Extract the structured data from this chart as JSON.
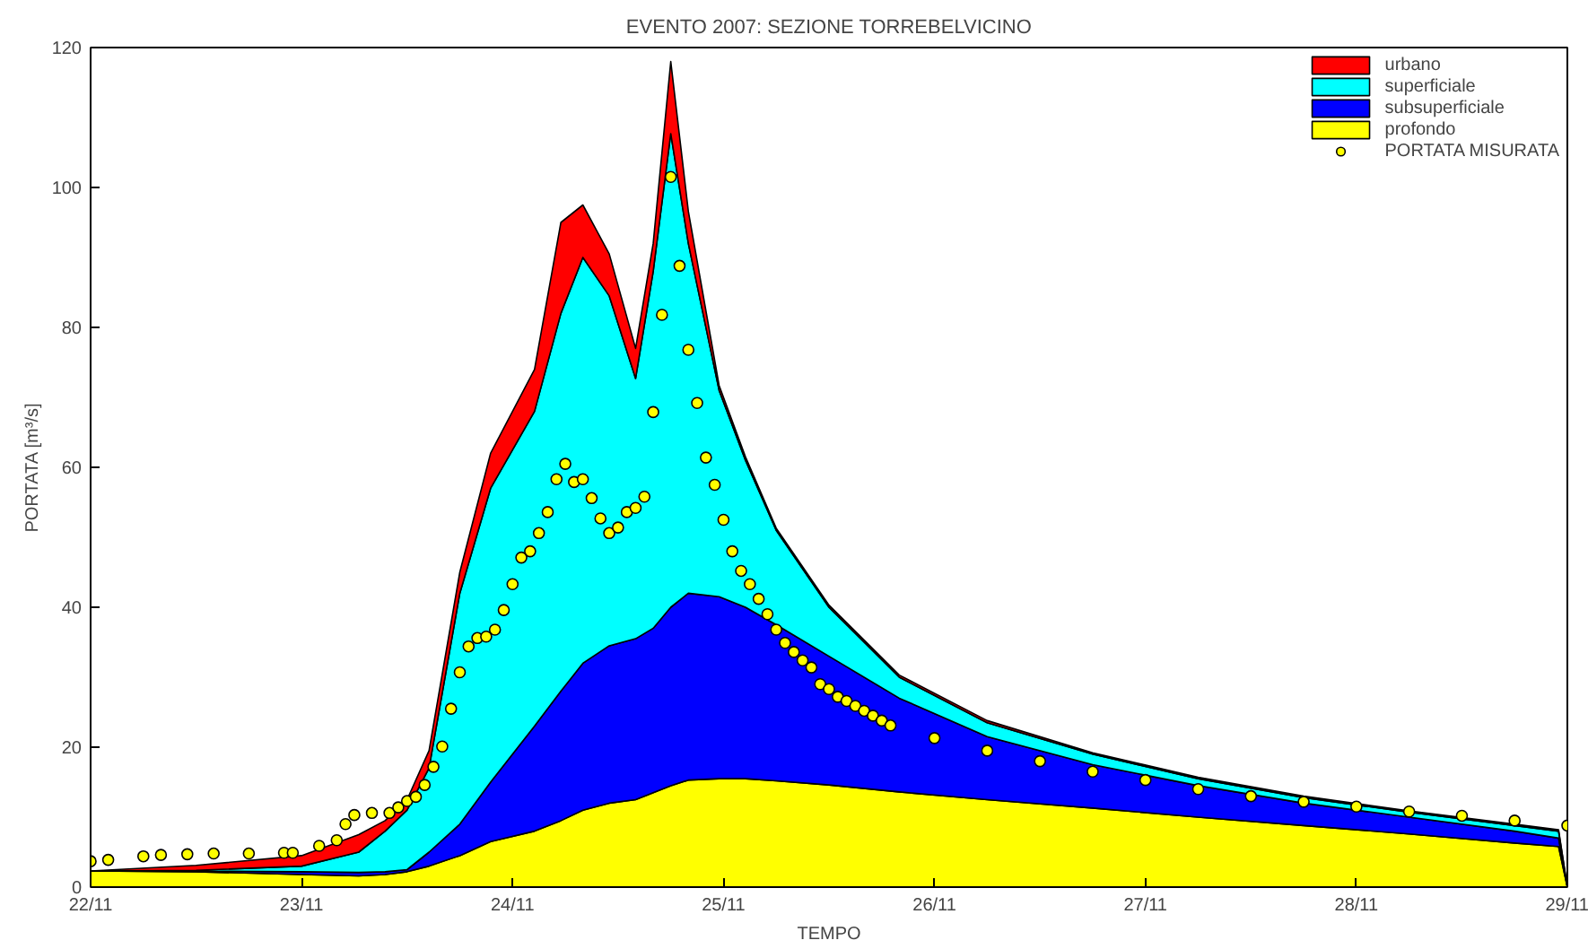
{
  "chart_data": {
    "type": "area",
    "stacked": true,
    "title": "EVENTO 2007: SEZIONE TORREBELVICINO",
    "xlabel": "TEMPO",
    "ylabel": "PORTATA [m³/s]",
    "x": [
      "2007-11-22T00:00",
      "2007-11-22T12:00",
      "2007-11-23T00:00",
      "2007-11-23T06:30",
      "2007-11-23T09:30",
      "2007-11-23T12:00",
      "2007-11-23T14:30",
      "2007-11-23T18:00",
      "2007-11-23T21:30",
      "2007-11-24T02:30",
      "2007-11-24T05:30",
      "2007-11-24T08:00",
      "2007-11-24T11:00",
      "2007-11-24T14:00",
      "2007-11-24T16:00",
      "2007-11-24T18:00",
      "2007-11-24T20:00",
      "2007-11-24T23:30",
      "2007-11-25T02:30",
      "2007-11-25T06:00",
      "2007-11-25T12:00",
      "2007-11-25T20:00",
      "2007-11-26T06:00",
      "2007-11-26T18:00",
      "2007-11-27T06:00",
      "2007-11-27T18:00",
      "2007-11-28T06:00",
      "2007-11-28T18:00",
      "2007-11-28T23:00",
      "2007-11-29T00:00"
    ],
    "xlim": [
      "2007-11-22",
      "2007-11-29"
    ],
    "ylim": [
      0,
      120
    ],
    "xticks": [
      {
        "value": "2007-11-22",
        "label": "22/11"
      },
      {
        "value": "2007-11-23",
        "label": "23/11"
      },
      {
        "value": "2007-11-24",
        "label": "24/11"
      },
      {
        "value": "2007-11-25",
        "label": "25/11"
      },
      {
        "value": "2007-11-26",
        "label": "26/11"
      },
      {
        "value": "2007-11-27",
        "label": "27/11"
      },
      {
        "value": "2007-11-28",
        "label": "28/11"
      },
      {
        "value": "2007-11-29",
        "label": "29/11"
      }
    ],
    "yticks": [
      0,
      20,
      40,
      60,
      80,
      100,
      120
    ],
    "grid": false,
    "legend": "top right",
    "series": [
      {
        "name": "profondo",
        "color": "#ffff00",
        "values": [
          2.3,
          2.2,
          1.8,
          1.6,
          1.8,
          2.2,
          3,
          4.5,
          6.5,
          8,
          9.5,
          11,
          12,
          12.5,
          13.5,
          14.5,
          15.3,
          15.5,
          15.5,
          15.2,
          14.6,
          13.6,
          12.5,
          11.3,
          10,
          8.8,
          7.6,
          6.3,
          5.8,
          0
        ]
      },
      {
        "name": "subsuperficiale",
        "color": "#0000ff",
        "values": [
          0,
          0.1,
          0.4,
          0.5,
          0.4,
          0.3,
          2,
          4.5,
          8.5,
          15,
          18.5,
          21,
          22.5,
          23,
          23.5,
          25.5,
          26.7,
          26,
          24.5,
          22.3,
          18.4,
          13.4,
          9,
          6.2,
          4.5,
          3.2,
          2.4,
          1.7,
          1.2,
          0
        ]
      },
      {
        "name": "superficiale",
        "color": "#00ffff",
        "values": [
          0,
          0.1,
          0.8,
          2.9,
          5.8,
          8.5,
          12,
          33,
          42,
          45,
          54,
          58,
          50,
          37.2,
          51,
          67.7,
          50,
          29.5,
          21,
          13.5,
          7,
          3,
          2,
          1.5,
          1,
          0.8,
          0.7,
          0.8,
          1,
          0
        ]
      },
      {
        "name": "urbano",
        "color": "#ff0000",
        "values": [
          0,
          0.7,
          1.5,
          2.5,
          1.5,
          1.5,
          2.5,
          3,
          5,
          6,
          13,
          7.5,
          6,
          4.3,
          4,
          10.3,
          4.6,
          0.7,
          0.5,
          0.3,
          0.3,
          0.3,
          0.3,
          0.2,
          0.2,
          0.2,
          0.2,
          0.2,
          0.2,
          0
        ]
      },
      {
        "name": "PORTATA MISURATA",
        "type": "scatter",
        "marker": "circle",
        "color": "#ffff00",
        "x": [
          "2007-11-22T00:00",
          "2007-11-22T02:00",
          "2007-11-22T06:00",
          "2007-11-22T08:00",
          "2007-11-22T11:00",
          "2007-11-22T14:00",
          "2007-11-22T18:00",
          "2007-11-22T22:00",
          "2007-11-22T23:00",
          "2007-11-23T02:00",
          "2007-11-23T04:00",
          "2007-11-23T05:00",
          "2007-11-23T06:00",
          "2007-11-23T08:00",
          "2007-11-23T10:00",
          "2007-11-23T11:00",
          "2007-11-23T12:00",
          "2007-11-23T13:00",
          "2007-11-23T14:00",
          "2007-11-23T15:00",
          "2007-11-23T16:00",
          "2007-11-23T17:00",
          "2007-11-23T18:00",
          "2007-11-23T19:00",
          "2007-11-23T20:00",
          "2007-11-23T21:00",
          "2007-11-23T22:00",
          "2007-11-23T23:00",
          "2007-11-24T00:00",
          "2007-11-24T01:00",
          "2007-11-24T02:00",
          "2007-11-24T03:00",
          "2007-11-24T04:00",
          "2007-11-24T05:00",
          "2007-11-24T06:00",
          "2007-11-24T07:00",
          "2007-11-24T08:00",
          "2007-11-24T09:00",
          "2007-11-24T10:00",
          "2007-11-24T11:00",
          "2007-11-24T12:00",
          "2007-11-24T13:00",
          "2007-11-24T14:00",
          "2007-11-24T15:00",
          "2007-11-24T16:00",
          "2007-11-24T17:00",
          "2007-11-24T18:00",
          "2007-11-24T19:00",
          "2007-11-24T20:00",
          "2007-11-24T21:00",
          "2007-11-24T22:00",
          "2007-11-24T23:00",
          "2007-11-25T00:00",
          "2007-11-25T01:00",
          "2007-11-25T02:00",
          "2007-11-25T03:00",
          "2007-11-25T04:00",
          "2007-11-25T05:00",
          "2007-11-25T06:00",
          "2007-11-25T07:00",
          "2007-11-25T08:00",
          "2007-11-25T09:00",
          "2007-11-25T10:00",
          "2007-11-25T11:00",
          "2007-11-25T12:00",
          "2007-11-25T13:00",
          "2007-11-25T14:00",
          "2007-11-25T15:00",
          "2007-11-25T16:00",
          "2007-11-25T17:00",
          "2007-11-25T18:00",
          "2007-11-25T19:00",
          "2007-11-26T00:00",
          "2007-11-26T06:00",
          "2007-11-26T12:00",
          "2007-11-26T18:00",
          "2007-11-27T00:00",
          "2007-11-27T06:00",
          "2007-11-27T12:00",
          "2007-11-27T18:00",
          "2007-11-28T00:00",
          "2007-11-28T06:00",
          "2007-11-28T12:00",
          "2007-11-28T18:00",
          "2007-11-29T00:00"
        ],
        "values": [
          3.7,
          3.9,
          4.4,
          4.6,
          4.7,
          4.8,
          4.8,
          4.9,
          4.9,
          5.9,
          6.7,
          9,
          10.3,
          10.6,
          10.6,
          11.4,
          12.3,
          12.9,
          14.6,
          17.2,
          20.1,
          25.5,
          30.7,
          34.4,
          35.6,
          35.8,
          36.8,
          39.6,
          43.3,
          47.1,
          48,
          50.6,
          53.6,
          58.3,
          60.5,
          57.9,
          58.3,
          55.6,
          52.7,
          50.6,
          51.4,
          53.6,
          54.2,
          55.8,
          67.9,
          81.8,
          101.5,
          88.8,
          76.8,
          69.2,
          61.4,
          57.5,
          52.5,
          48,
          45.2,
          43.3,
          41.2,
          39,
          36.8,
          34.9,
          33.6,
          32.4,
          31.4,
          29,
          28.3,
          27.2,
          26.6,
          25.9,
          25.2,
          24.5,
          23.8,
          23.1,
          21.3,
          19.5,
          18,
          16.5,
          15.3,
          14,
          13,
          12.2,
          11.5,
          10.8,
          10.2,
          9.5,
          8.8
        ]
      }
    ]
  }
}
